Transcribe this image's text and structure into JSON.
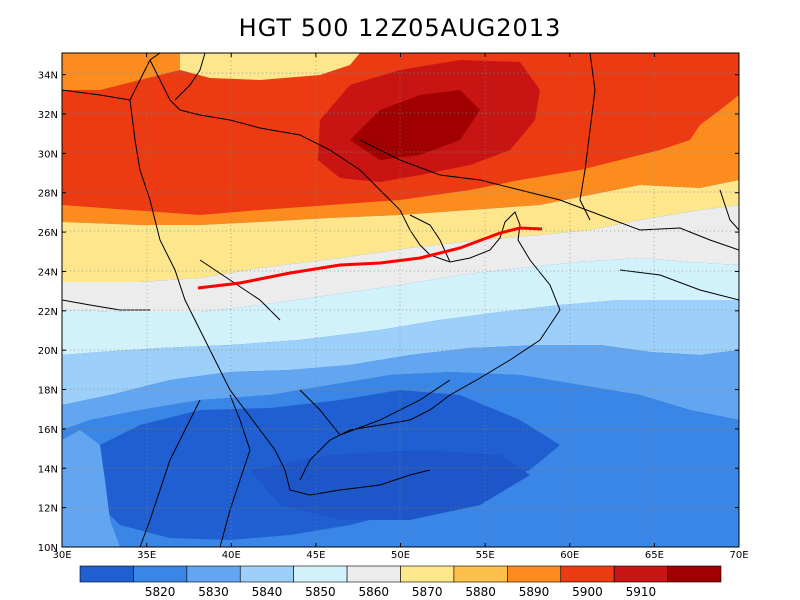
{
  "title": "HGT 500 12Z05AUG2013",
  "lat_labels": [
    "10N",
    "12N",
    "14N",
    "16N",
    "18N",
    "20N",
    "22N",
    "24N",
    "26N",
    "28N",
    "30N",
    "32N",
    "34N"
  ],
  "lon_labels": [
    "30E",
    "35E",
    "40E",
    "45E",
    "50E",
    "55E",
    "60E",
    "65E",
    "70E"
  ],
  "colorbar": {
    "colors": [
      "#1f5fd2",
      "#3a86e6",
      "#62a5f0",
      "#9cd0fa",
      "#d2f2fb",
      "#ececec",
      "#fde68c",
      "#fcc04a",
      "#fc8c1e",
      "#ec3a12",
      "#c81413",
      "#a00000"
    ],
    "labels": [
      "5820",
      "5830",
      "5840",
      "5850",
      "5860",
      "5870",
      "5880",
      "5890",
      "5900",
      "5910"
    ]
  },
  "trough_line_color": "#ff0000"
}
